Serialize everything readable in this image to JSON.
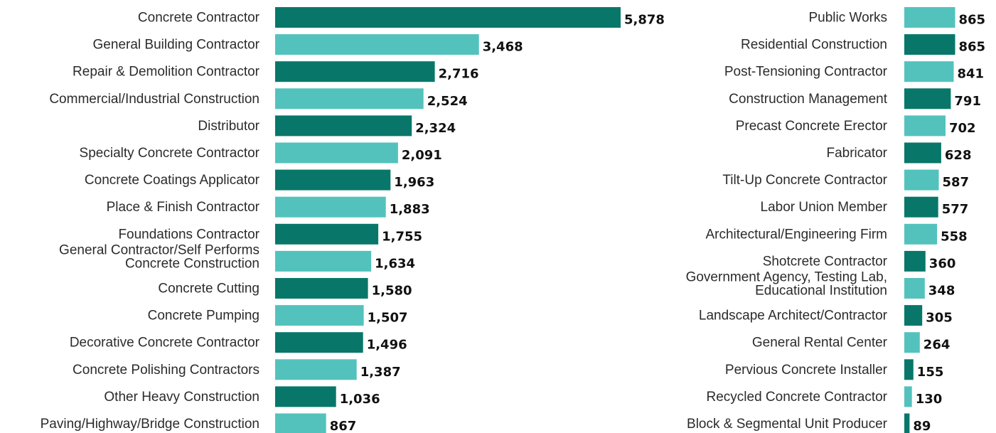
{
  "chart_data": [
    {
      "type": "bar",
      "orientation": "horizontal",
      "categories": [
        [
          "Concrete Contractor"
        ],
        [
          "General Building Contractor"
        ],
        [
          "Repair & Demolition Contractor"
        ],
        [
          "Commercial/Industrial Construction"
        ],
        [
          "Distributor"
        ],
        [
          "Specialty Concrete Contractor"
        ],
        [
          "Concrete Coatings Applicator"
        ],
        [
          "Place & Finish Contractor"
        ],
        [
          "Foundations Contractor"
        ],
        [
          "General Contractor/Self Performs",
          "Concrete Construction"
        ],
        [
          "Concrete Cutting"
        ],
        [
          "Concrete Pumping"
        ],
        [
          "Decorative Concrete Contractor"
        ],
        [
          "Concrete Polishing Contractors"
        ],
        [
          "Other Heavy Construction"
        ],
        [
          "Paving/Highway/Bridge Construction"
        ]
      ],
      "values": [
        5878,
        3468,
        2716,
        2524,
        2324,
        2091,
        1963,
        1883,
        1755,
        1634,
        1580,
        1507,
        1496,
        1387,
        1036,
        867
      ],
      "value_labels": [
        "5,878",
        "3,468",
        "2,716",
        "2,524",
        "2,324",
        "2,091",
        "1,963",
        "1,883",
        "1,755",
        "1,634",
        "1,580",
        "1,507",
        "1,496",
        "1,387",
        "1,036",
        "867"
      ],
      "xlim": [
        0,
        5878
      ]
    },
    {
      "type": "bar",
      "orientation": "horizontal",
      "categories": [
        [
          "Public Works"
        ],
        [
          "Residential Construction"
        ],
        [
          "Post-Tensioning Contractor"
        ],
        [
          "Construction Management"
        ],
        [
          "Precast Concrete Erector"
        ],
        [
          "Fabricator"
        ],
        [
          "Tilt-Up Concrete Contractor"
        ],
        [
          "Labor Union Member"
        ],
        [
          "Architectural/Engineering Firm"
        ],
        [
          "Shotcrete Contractor"
        ],
        [
          "Government Agency, Testing Lab,",
          "Educational Institution"
        ],
        [
          "Landscape Architect/Contractor"
        ],
        [
          "General Rental Center"
        ],
        [
          "Pervious Concrete Installer"
        ],
        [
          "Recycled Concrete Contractor"
        ],
        [
          "Block & Segmental Unit Producer"
        ]
      ],
      "values": [
        865,
        865,
        841,
        791,
        702,
        628,
        587,
        577,
        558,
        360,
        348,
        305,
        264,
        155,
        130,
        89
      ],
      "value_labels": [
        "865",
        "865",
        "841",
        "791",
        "702",
        "628",
        "587",
        "577",
        "558",
        "360",
        "348",
        "305",
        "264",
        "155",
        "130",
        "89"
      ],
      "xlim": [
        0,
        5878
      ]
    }
  ],
  "colors": {
    "dark_teal": "#08776a",
    "light_teal": "#53c2bd",
    "label_text": "#2b2b2b",
    "value_text": "#111111"
  },
  "bar_color_pattern": [
    [
      "dark_teal",
      "light_teal"
    ],
    [
      "light_teal",
      "dark_teal"
    ]
  ]
}
